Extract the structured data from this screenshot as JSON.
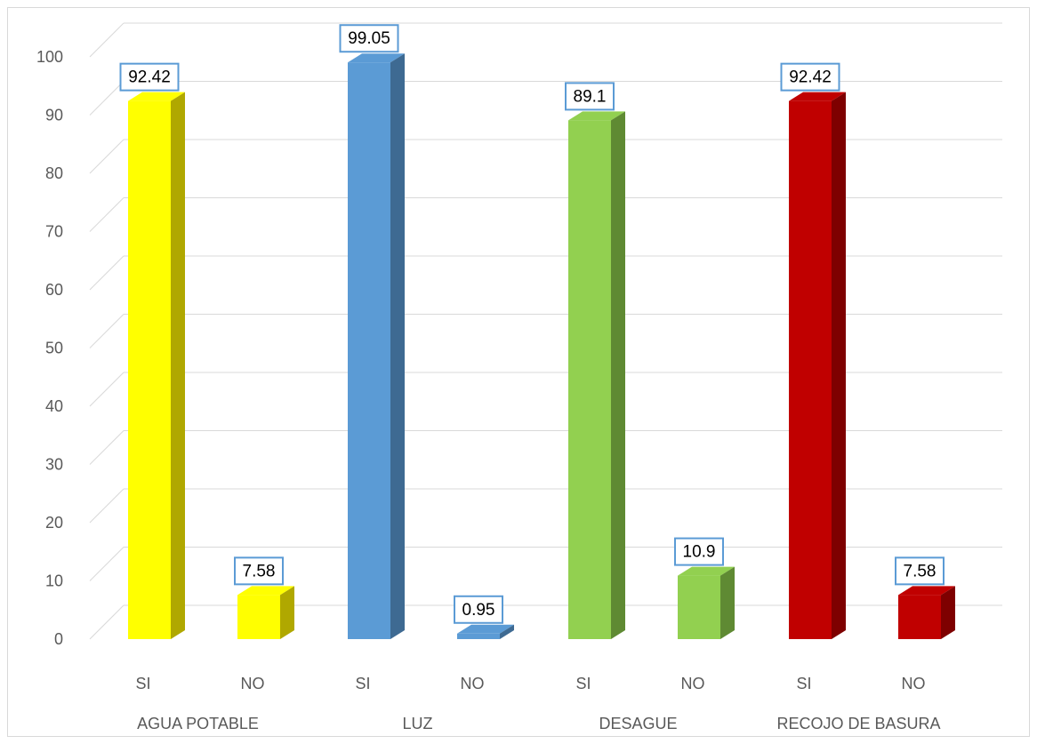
{
  "chart_data": {
    "type": "bar",
    "groups": [
      {
        "label": "AGUA POTABLE",
        "bars": [
          {
            "label": "SI",
            "value": 92.42,
            "value_label": "92.42",
            "color": "#FFFF00",
            "side_color": "#B0A800"
          },
          {
            "label": "NO",
            "value": 7.58,
            "value_label": "7.58",
            "color": "#FFFF00",
            "side_color": "#B0A800"
          }
        ]
      },
      {
        "label": "LUZ",
        "bars": [
          {
            "label": "SI",
            "value": 99.05,
            "value_label": "99.05",
            "color": "#5B9BD5",
            "side_color": "#3E6A92"
          },
          {
            "label": "NO",
            "value": 0.95,
            "value_label": "0.95",
            "color": "#5B9BD5",
            "side_color": "#3E6A92"
          }
        ]
      },
      {
        "label": "DESAGUE",
        "bars": [
          {
            "label": "SI",
            "value": 89.1,
            "value_label": "89.1",
            "color": "#92D050",
            "side_color": "#5F8A33"
          },
          {
            "label": "NO",
            "value": 10.9,
            "value_label": "10.9",
            "color": "#92D050",
            "side_color": "#5F8A33"
          }
        ]
      },
      {
        "label": "RECOJO DE BASURA",
        "bars": [
          {
            "label": "SI",
            "value": 92.42,
            "value_label": "92.42",
            "color": "#C00000",
            "side_color": "#7E0000"
          },
          {
            "label": "NO",
            "value": 7.58,
            "value_label": "7.58",
            "color": "#C00000",
            "side_color": "#7E0000"
          }
        ]
      }
    ],
    "y_ticks": [
      "0",
      "10",
      "20",
      "30",
      "40",
      "50",
      "60",
      "70",
      "80",
      "90",
      "100"
    ],
    "ylim": [
      0,
      100
    ],
    "grid": true,
    "three_d": true,
    "data_label_border_color": "#5B9BD5"
  }
}
